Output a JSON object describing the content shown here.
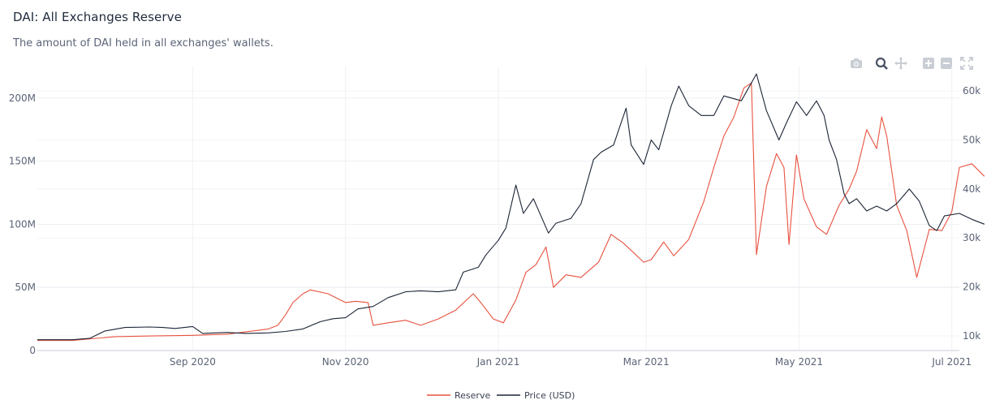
{
  "header": {
    "title": "DAI: All Exchanges Reserve",
    "subtitle": "The amount of DAI held in all exchanges' wallets."
  },
  "modebar": [
    {
      "icon": "camera-icon"
    },
    {
      "icon": "zoom-icon"
    },
    {
      "icon": "pan-icon"
    },
    {
      "icon": "zoom-in-icon"
    },
    {
      "icon": "zoom-out-icon"
    },
    {
      "icon": "autoscale-icon"
    }
  ],
  "chart_data": {
    "type": "line",
    "x_start": "2020-07-01",
    "x_end": "2021-07-04",
    "x_ticks": [
      {
        "date": "2020-09-01",
        "label": "Sep 2020"
      },
      {
        "date": "2020-11-01",
        "label": "Nov 2020"
      },
      {
        "date": "2021-01-01",
        "label": "Jan 2021"
      },
      {
        "date": "2021-03-01",
        "label": "Mar 2021"
      },
      {
        "date": "2021-05-01",
        "label": "May 2021"
      },
      {
        "date": "2021-07-01",
        "label": "Jul 2021"
      }
    ],
    "y_left": {
      "range": [
        0,
        225000000
      ],
      "ticks": [
        0,
        50000000,
        100000000,
        150000000,
        200000000
      ],
      "tick_labels": [
        "0",
        "50M",
        "100M",
        "150M",
        "200M"
      ]
    },
    "y_right": {
      "range": [
        7000,
        65000
      ],
      "ticks": [
        10000,
        20000,
        30000,
        40000,
        50000,
        60000
      ],
      "tick_labels": [
        "10k",
        "20k",
        "30k",
        "40k",
        "50k",
        "60k"
      ]
    },
    "grid": true,
    "legend_position": "bottom-center",
    "series": [
      {
        "name": "Reserve",
        "axis": "left",
        "color": "#e8523f",
        "points": [
          [
            "2020-07-01",
            8000000
          ],
          [
            "2020-07-15",
            8000000
          ],
          [
            "2020-08-01",
            11000000
          ],
          [
            "2020-08-15",
            11500000
          ],
          [
            "2020-09-01",
            12000000
          ],
          [
            "2020-09-15",
            13000000
          ],
          [
            "2020-10-01",
            17000000
          ],
          [
            "2020-10-05",
            20000000
          ],
          [
            "2020-10-08",
            28000000
          ],
          [
            "2020-10-11",
            38000000
          ],
          [
            "2020-10-15",
            45000000
          ],
          [
            "2020-10-18",
            48000000
          ],
          [
            "2020-10-25",
            45000000
          ],
          [
            "2020-11-01",
            38000000
          ],
          [
            "2020-11-05",
            39000000
          ],
          [
            "2020-11-10",
            38000000
          ],
          [
            "2020-11-12",
            20000000
          ],
          [
            "2020-11-18",
            22000000
          ],
          [
            "2020-11-25",
            24000000
          ],
          [
            "2020-12-01",
            20000000
          ],
          [
            "2020-12-08",
            25000000
          ],
          [
            "2020-12-15",
            32000000
          ],
          [
            "2020-12-22",
            45000000
          ],
          [
            "2020-12-25",
            38000000
          ],
          [
            "2020-12-30",
            25000000
          ],
          [
            "2021-01-03",
            22000000
          ],
          [
            "2021-01-08",
            40000000
          ],
          [
            "2021-01-12",
            62000000
          ],
          [
            "2021-01-16",
            68000000
          ],
          [
            "2021-01-20",
            82000000
          ],
          [
            "2021-01-23",
            50000000
          ],
          [
            "2021-01-28",
            60000000
          ],
          [
            "2021-02-03",
            58000000
          ],
          [
            "2021-02-10",
            70000000
          ],
          [
            "2021-02-15",
            92000000
          ],
          [
            "2021-02-20",
            85000000
          ],
          [
            "2021-02-28",
            70000000
          ],
          [
            "2021-03-03",
            72000000
          ],
          [
            "2021-03-08",
            86000000
          ],
          [
            "2021-03-12",
            75000000
          ],
          [
            "2021-03-18",
            88000000
          ],
          [
            "2021-03-24",
            118000000
          ],
          [
            "2021-03-28",
            145000000
          ],
          [
            "2021-04-01",
            170000000
          ],
          [
            "2021-04-05",
            185000000
          ],
          [
            "2021-04-09",
            208000000
          ],
          [
            "2021-04-12",
            212000000
          ],
          [
            "2021-04-14",
            76000000
          ],
          [
            "2021-04-18",
            130000000
          ],
          [
            "2021-04-22",
            156000000
          ],
          [
            "2021-04-25",
            145000000
          ],
          [
            "2021-04-27",
            84000000
          ],
          [
            "2021-04-30",
            155000000
          ],
          [
            "2021-05-03",
            120000000
          ],
          [
            "2021-05-08",
            98000000
          ],
          [
            "2021-05-12",
            92000000
          ],
          [
            "2021-05-17",
            115000000
          ],
          [
            "2021-05-21",
            128000000
          ],
          [
            "2021-05-24",
            142000000
          ],
          [
            "2021-05-28",
            175000000
          ],
          [
            "2021-06-01",
            160000000
          ],
          [
            "2021-06-03",
            185000000
          ],
          [
            "2021-06-05",
            170000000
          ],
          [
            "2021-06-09",
            115000000
          ],
          [
            "2021-06-13",
            95000000
          ],
          [
            "2021-06-17",
            58000000
          ],
          [
            "2021-06-22",
            96000000
          ],
          [
            "2021-06-27",
            95000000
          ],
          [
            "2021-07-01",
            110000000
          ],
          [
            "2021-07-04",
            145000000
          ],
          [
            "2021-07-09",
            148000000
          ],
          [
            "2021-07-14",
            138000000
          ]
        ]
      },
      {
        "name": "Price (USD)",
        "axis": "right",
        "color": "#1c2536",
        "points": [
          [
            "2020-07-01",
            9200
          ],
          [
            "2020-07-15",
            9200
          ],
          [
            "2020-07-22",
            9500
          ],
          [
            "2020-07-28",
            11000
          ],
          [
            "2020-08-05",
            11700
          ],
          [
            "2020-08-15",
            11800
          ],
          [
            "2020-08-20",
            11700
          ],
          [
            "2020-08-25",
            11500
          ],
          [
            "2020-09-01",
            11900
          ],
          [
            "2020-09-05",
            10500
          ],
          [
            "2020-09-15",
            10700
          ],
          [
            "2020-09-22",
            10500
          ],
          [
            "2020-10-01",
            10600
          ],
          [
            "2020-10-08",
            10900
          ],
          [
            "2020-10-15",
            11400
          ],
          [
            "2020-10-22",
            12900
          ],
          [
            "2020-10-27",
            13500
          ],
          [
            "2020-11-01",
            13700
          ],
          [
            "2020-11-06",
            15500
          ],
          [
            "2020-11-12",
            16000
          ],
          [
            "2020-11-18",
            17800
          ],
          [
            "2020-11-25",
            19000
          ],
          [
            "2020-12-01",
            19200
          ],
          [
            "2020-12-08",
            19000
          ],
          [
            "2020-12-15",
            19400
          ],
          [
            "2020-12-18",
            23000
          ],
          [
            "2020-12-24",
            24000
          ],
          [
            "2020-12-27",
            26500
          ],
          [
            "2021-01-01",
            29500
          ],
          [
            "2021-01-04",
            32000
          ],
          [
            "2021-01-08",
            40800
          ],
          [
            "2021-01-11",
            35000
          ],
          [
            "2021-01-15",
            38000
          ],
          [
            "2021-01-21",
            31000
          ],
          [
            "2021-01-24",
            33000
          ],
          [
            "2021-01-30",
            34000
          ],
          [
            "2021-02-03",
            37000
          ],
          [
            "2021-02-08",
            46000
          ],
          [
            "2021-02-11",
            47500
          ],
          [
            "2021-02-16",
            49000
          ],
          [
            "2021-02-21",
            56500
          ],
          [
            "2021-02-23",
            49000
          ],
          [
            "2021-02-28",
            45000
          ],
          [
            "2021-03-03",
            50000
          ],
          [
            "2021-03-06",
            48000
          ],
          [
            "2021-03-11",
            57000
          ],
          [
            "2021-03-14",
            61000
          ],
          [
            "2021-03-18",
            57000
          ],
          [
            "2021-03-23",
            55000
          ],
          [
            "2021-03-28",
            55000
          ],
          [
            "2021-04-01",
            59000
          ],
          [
            "2021-04-08",
            58000
          ],
          [
            "2021-04-14",
            63500
          ],
          [
            "2021-04-18",
            56000
          ],
          [
            "2021-04-23",
            50000
          ],
          [
            "2021-04-26",
            53500
          ],
          [
            "2021-04-30",
            57800
          ],
          [
            "2021-05-04",
            55000
          ],
          [
            "2021-05-08",
            58000
          ],
          [
            "2021-05-11",
            55000
          ],
          [
            "2021-05-13",
            50000
          ],
          [
            "2021-05-16",
            46000
          ],
          [
            "2021-05-19",
            39000
          ],
          [
            "2021-05-21",
            37000
          ],
          [
            "2021-05-24",
            38000
          ],
          [
            "2021-05-28",
            35500
          ],
          [
            "2021-06-01",
            36500
          ],
          [
            "2021-06-05",
            35500
          ],
          [
            "2021-06-09",
            37000
          ],
          [
            "2021-06-14",
            40000
          ],
          [
            "2021-06-18",
            37500
          ],
          [
            "2021-06-22",
            32500
          ],
          [
            "2021-06-25",
            31500
          ],
          [
            "2021-06-28",
            34500
          ],
          [
            "2021-07-04",
            35000
          ],
          [
            "2021-07-09",
            33800
          ],
          [
            "2021-07-14",
            32800
          ]
        ]
      }
    ]
  }
}
